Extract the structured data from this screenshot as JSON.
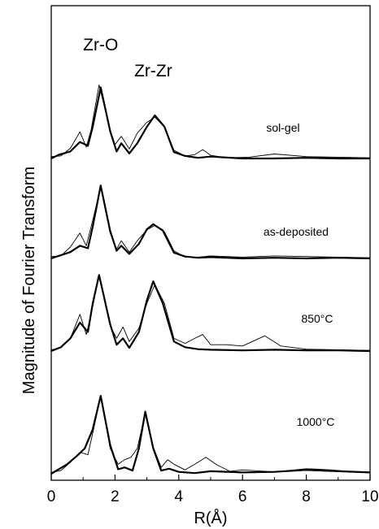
{
  "chart_data": {
    "type": "line",
    "xlabel": "R(Å)",
    "ylabel": "Magnitude of Fourier Transform",
    "xlim": [
      0,
      10
    ],
    "xticks": [
      "0",
      "2",
      "4",
      "6",
      "8",
      "10"
    ],
    "y_tick_labels": false,
    "series_styles": [
      {
        "style": "thin"
      },
      {
        "style": "thick"
      }
    ],
    "peak_labels": [
      {
        "text": "Zr-O",
        "x": 1.55
      },
      {
        "text": "Zr-Zr",
        "x": 3.2
      }
    ],
    "panels": [
      {
        "label": "sol-gel",
        "thin": [
          [
            0,
            0.3
          ],
          [
            0.3,
            0.4
          ],
          [
            0.6,
            1.6
          ],
          [
            0.9,
            4.2
          ],
          [
            1.1,
            1.8
          ],
          [
            1.25,
            4.5
          ],
          [
            1.5,
            11.6
          ],
          [
            1.85,
            4.4
          ],
          [
            2.0,
            2.2
          ],
          [
            2.2,
            3.5
          ],
          [
            2.45,
            1.5
          ],
          [
            2.7,
            4.0
          ],
          [
            3.0,
            5.7
          ],
          [
            3.25,
            6.5
          ],
          [
            3.55,
            5.0
          ],
          [
            3.85,
            1.3
          ],
          [
            4.2,
            0.4
          ],
          [
            4.5,
            0.6
          ],
          [
            4.75,
            1.4
          ],
          [
            5.0,
            0.5
          ],
          [
            5.5,
            0.1
          ],
          [
            6.2,
            0.2
          ],
          [
            7.0,
            0.7
          ],
          [
            8.0,
            0.3
          ],
          [
            9.0,
            0.2
          ],
          [
            10,
            0.1
          ]
        ],
        "thick": [
          [
            0,
            0.0
          ],
          [
            0.25,
            0.6
          ],
          [
            0.6,
            1.1
          ],
          [
            0.9,
            2.6
          ],
          [
            1.15,
            2.0
          ],
          [
            1.3,
            5.0
          ],
          [
            1.55,
            11.2
          ],
          [
            1.85,
            4.3
          ],
          [
            2.05,
            1.1
          ],
          [
            2.2,
            2.4
          ],
          [
            2.45,
            0.8
          ],
          [
            2.7,
            2.4
          ],
          [
            3.0,
            5.0
          ],
          [
            3.25,
            6.8
          ],
          [
            3.55,
            5.0
          ],
          [
            3.85,
            1.0
          ],
          [
            4.2,
            0.4
          ],
          [
            4.6,
            0.1
          ],
          [
            5.0,
            0.3
          ],
          [
            6.0,
            0.0
          ],
          [
            7.0,
            0.0
          ],
          [
            8.0,
            0.1
          ],
          [
            9.0,
            0.0
          ],
          [
            10,
            0.0
          ]
        ]
      },
      {
        "label": "as-deposited",
        "thin": [
          [
            0,
            0.3
          ],
          [
            0.3,
            0.4
          ],
          [
            0.6,
            1.8
          ],
          [
            0.9,
            4.0
          ],
          [
            1.1,
            2.0
          ],
          [
            1.3,
            6.0
          ],
          [
            1.55,
            11.2
          ],
          [
            1.85,
            4.0
          ],
          [
            2.05,
            1.5
          ],
          [
            2.2,
            2.8
          ],
          [
            2.45,
            1.0
          ],
          [
            2.7,
            2.8
          ],
          [
            3.0,
            4.5
          ],
          [
            3.25,
            5.2
          ],
          [
            3.55,
            4.2
          ],
          [
            3.85,
            1.2
          ],
          [
            4.2,
            0.2
          ],
          [
            4.6,
            0.2
          ],
          [
            5.0,
            0.4
          ],
          [
            6.0,
            0.2
          ],
          [
            7.0,
            0.4
          ],
          [
            8.0,
            0.3
          ],
          [
            9.0,
            0.2
          ],
          [
            10,
            0.1
          ]
        ],
        "thick": [
          [
            0,
            0.0
          ],
          [
            0.3,
            0.5
          ],
          [
            0.6,
            1.0
          ],
          [
            0.9,
            2.0
          ],
          [
            1.15,
            1.6
          ],
          [
            1.3,
            5.0
          ],
          [
            1.55,
            11.5
          ],
          [
            1.85,
            4.3
          ],
          [
            2.05,
            1.2
          ],
          [
            2.2,
            2.0
          ],
          [
            2.45,
            0.7
          ],
          [
            2.75,
            2.3
          ],
          [
            3.0,
            4.6
          ],
          [
            3.2,
            5.4
          ],
          [
            3.5,
            4.4
          ],
          [
            3.85,
            0.9
          ],
          [
            4.2,
            0.3
          ],
          [
            4.6,
            0.1
          ],
          [
            5.0,
            0.2
          ],
          [
            6.0,
            0.0
          ],
          [
            7.0,
            0.1
          ],
          [
            8.0,
            0.0
          ],
          [
            9.0,
            0.1
          ],
          [
            10,
            0.0
          ]
        ]
      },
      {
        "label": "850°C",
        "thin": [
          [
            0,
            0.2
          ],
          [
            0.3,
            0.5
          ],
          [
            0.6,
            2.0
          ],
          [
            0.9,
            5.8
          ],
          [
            1.1,
            2.6
          ],
          [
            1.3,
            7.0
          ],
          [
            1.5,
            12.0
          ],
          [
            1.85,
            4.0
          ],
          [
            2.05,
            2.0
          ],
          [
            2.25,
            3.8
          ],
          [
            2.45,
            1.5
          ],
          [
            2.75,
            3.6
          ],
          [
            3.0,
            7.5
          ],
          [
            3.25,
            10.5
          ],
          [
            3.55,
            7.5
          ],
          [
            3.85,
            2.0
          ],
          [
            4.2,
            1.2
          ],
          [
            4.5,
            2.0
          ],
          [
            4.75,
            2.6
          ],
          [
            5.0,
            1.0
          ],
          [
            5.5,
            1.0
          ],
          [
            6.0,
            0.8
          ],
          [
            6.7,
            2.4
          ],
          [
            7.2,
            0.8
          ],
          [
            8.0,
            0.3
          ],
          [
            9.0,
            0.2
          ],
          [
            10,
            0.1
          ]
        ],
        "thick": [
          [
            0,
            0.0
          ],
          [
            0.3,
            0.6
          ],
          [
            0.6,
            2.0
          ],
          [
            0.9,
            4.5
          ],
          [
            1.15,
            3.0
          ],
          [
            1.3,
            7.5
          ],
          [
            1.5,
            12.0
          ],
          [
            1.85,
            4.2
          ],
          [
            2.05,
            1.0
          ],
          [
            2.25,
            2.0
          ],
          [
            2.45,
            0.5
          ],
          [
            2.75,
            3.0
          ],
          [
            3.0,
            8.0
          ],
          [
            3.2,
            11.0
          ],
          [
            3.5,
            7.5
          ],
          [
            3.85,
            1.5
          ],
          [
            4.2,
            0.6
          ],
          [
            4.6,
            0.3
          ],
          [
            5.0,
            0.2
          ],
          [
            6.0,
            0.1
          ],
          [
            7.0,
            0.2
          ],
          [
            8.0,
            0.1
          ],
          [
            9.0,
            0.1
          ],
          [
            10,
            0.0
          ]
        ]
      },
      {
        "label": "1000°C",
        "thin": [
          [
            0,
            0.2
          ],
          [
            0.3,
            0.5
          ],
          [
            0.6,
            1.8
          ],
          [
            0.9,
            3.4
          ],
          [
            1.15,
            3.0
          ],
          [
            1.35,
            7.5
          ],
          [
            1.55,
            12.2
          ],
          [
            1.85,
            4.0
          ],
          [
            2.1,
            1.5
          ],
          [
            2.3,
            2.2
          ],
          [
            2.5,
            2.6
          ],
          [
            2.7,
            4.0
          ],
          [
            2.95,
            9.6
          ],
          [
            3.2,
            4.2
          ],
          [
            3.45,
            1.0
          ],
          [
            3.65,
            2.2
          ],
          [
            3.85,
            1.5
          ],
          [
            4.2,
            0.6
          ],
          [
            4.6,
            1.8
          ],
          [
            4.85,
            2.6
          ],
          [
            5.2,
            1.4
          ],
          [
            5.6,
            0.4
          ],
          [
            6.0,
            0.6
          ],
          [
            7.0,
            0.3
          ],
          [
            8.0,
            0.8
          ],
          [
            8.4,
            0.7
          ],
          [
            8.8,
            0.6
          ],
          [
            9.5,
            0.3
          ],
          [
            10,
            0.2
          ]
        ],
        "thick": [
          [
            0,
            0.0
          ],
          [
            0.2,
            0.6
          ],
          [
            0.5,
            1.5
          ],
          [
            0.8,
            2.8
          ],
          [
            1.05,
            4.0
          ],
          [
            1.3,
            7.0
          ],
          [
            1.55,
            12.3
          ],
          [
            1.85,
            4.5
          ],
          [
            2.1,
            0.7
          ],
          [
            2.3,
            1.0
          ],
          [
            2.55,
            0.5
          ],
          [
            2.75,
            4.0
          ],
          [
            2.95,
            9.8
          ],
          [
            3.2,
            4.0
          ],
          [
            3.45,
            0.5
          ],
          [
            3.7,
            0.8
          ],
          [
            4.0,
            0.3
          ],
          [
            4.5,
            0.1
          ],
          [
            5.0,
            0.4
          ],
          [
            6.0,
            0.2
          ],
          [
            7.0,
            0.3
          ],
          [
            8.0,
            0.6
          ],
          [
            9.0,
            0.4
          ],
          [
            10,
            0.2
          ]
        ]
      }
    ]
  }
}
